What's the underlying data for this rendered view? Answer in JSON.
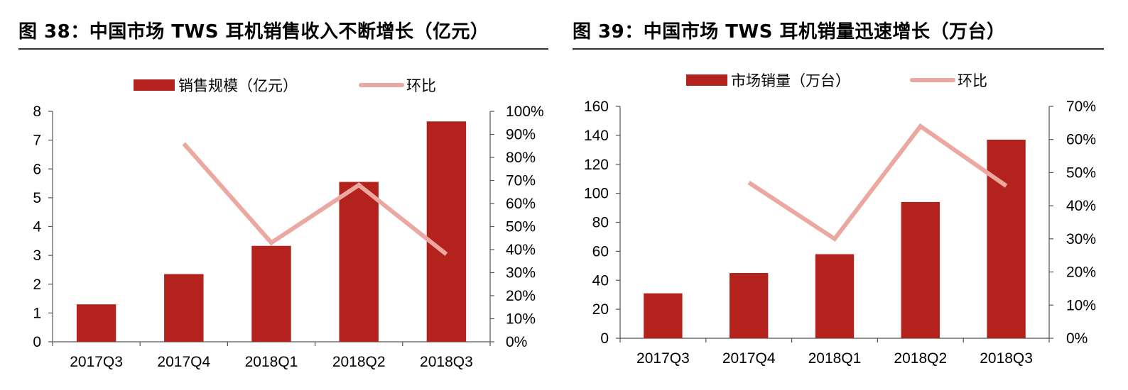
{
  "figures": [
    {
      "title": "图 38：中国市场 TWS 耳机销售收入不断增长（亿元）"
    },
    {
      "title": "图 39：中国市场 TWS 耳机销量迅速增长（万台）"
    }
  ],
  "colors": {
    "bar": "#b3221c",
    "line": "#eba8a0",
    "axis": "#555555",
    "rule": "#333333"
  },
  "chart_data": [
    {
      "type": "bar",
      "title": "图 38：中国市场 TWS 耳机销售收入不断增长（亿元）",
      "categories": [
        "2017Q3",
        "2017Q4",
        "2018Q1",
        "2018Q2",
        "2018Q3"
      ],
      "series": [
        {
          "name": "销售规模（亿元）",
          "type": "bar",
          "axis": "left",
          "values": [
            1.3,
            2.35,
            3.33,
            5.55,
            7.65
          ]
        },
        {
          "name": "环比",
          "type": "line",
          "axis": "right",
          "values": [
            null,
            0.86,
            0.43,
            0.68,
            0.38
          ]
        }
      ],
      "ylim": [
        0,
        8
      ],
      "yticks": [
        0,
        1,
        2,
        3,
        4,
        5,
        6,
        7,
        8
      ],
      "y2lim": [
        0,
        1.0
      ],
      "y2ticks": [
        "0%",
        "10%",
        "20%",
        "30%",
        "40%",
        "50%",
        "60%",
        "70%",
        "80%",
        "90%",
        "100%"
      ],
      "legend": "top",
      "grid": false
    },
    {
      "type": "bar",
      "title": "图 39：中国市场 TWS 耳机销量迅速增长（万台）",
      "categories": [
        "2017Q3",
        "2017Q4",
        "2018Q1",
        "2018Q2",
        "2018Q3"
      ],
      "series": [
        {
          "name": "市场销量（万台）",
          "type": "bar",
          "axis": "left",
          "values": [
            31,
            45,
            58,
            94,
            137
          ]
        },
        {
          "name": "环比",
          "type": "line",
          "axis": "right",
          "values": [
            null,
            0.47,
            0.3,
            0.64,
            0.46
          ]
        }
      ],
      "ylim": [
        0,
        160
      ],
      "yticks": [
        0,
        20,
        40,
        60,
        80,
        100,
        120,
        140,
        160
      ],
      "y2lim": [
        0,
        0.7
      ],
      "y2ticks": [
        "0%",
        "10%",
        "20%",
        "30%",
        "40%",
        "50%",
        "60%",
        "70%"
      ],
      "legend": "top",
      "grid": false
    }
  ]
}
